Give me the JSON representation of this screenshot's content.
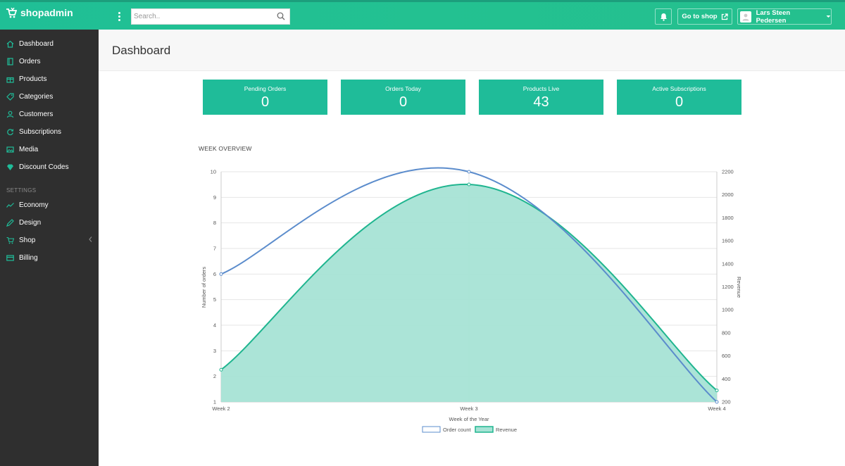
{
  "app": {
    "name": "shopadmin"
  },
  "topbar": {
    "search_placeholder": "Search..",
    "goto_label": "Go to shop",
    "user_name": "Lars Steen Pedersen"
  },
  "sidebar": {
    "items": [
      {
        "label": "Dashboard",
        "icon": "home-icon"
      },
      {
        "label": "Orders",
        "icon": "book-icon"
      },
      {
        "label": "Products",
        "icon": "gift-icon"
      },
      {
        "label": "Categories",
        "icon": "tag-icon"
      },
      {
        "label": "Customers",
        "icon": "user-icon"
      },
      {
        "label": "Subscriptions",
        "icon": "refresh-icon"
      },
      {
        "label": "Media",
        "icon": "image-icon"
      },
      {
        "label": "Discount Codes",
        "icon": "diamond-icon"
      }
    ],
    "settings_heading": "SETTINGS",
    "settings_items": [
      {
        "label": "Economy",
        "icon": "trend-icon"
      },
      {
        "label": "Design",
        "icon": "brush-icon"
      },
      {
        "label": "Shop",
        "icon": "cart-icon"
      },
      {
        "label": "Billing",
        "icon": "card-icon"
      }
    ]
  },
  "page": {
    "title": "Dashboard"
  },
  "stats": [
    {
      "label": "Pending Orders",
      "value": "0"
    },
    {
      "label": "Orders Today",
      "value": "0"
    },
    {
      "label": "Products Live",
      "value": "43"
    },
    {
      "label": "Active Subscriptions",
      "value": "0"
    }
  ],
  "week_overview": {
    "title": "WEEK OVERVIEW"
  },
  "colors": {
    "accent": "#1fbc99",
    "sidebar": "#2f2f2f",
    "order_line": "#5b8ccc",
    "revenue_line": "#1fb58f",
    "revenue_fill": "#a6e3d5"
  },
  "chart_data": {
    "type": "line",
    "categories": [
      "Week 2",
      "Week 3",
      "Week 4"
    ],
    "series": [
      {
        "name": "Order count",
        "axis": "left",
        "values": [
          6,
          10,
          1
        ]
      },
      {
        "name": "Revenue",
        "axis": "right",
        "values": [
          480,
          2090,
          300
        ],
        "fill": true
      }
    ],
    "xlabel": "Week of the Year",
    "ylabel": "Number of orders",
    "y2label": "Revenue",
    "ylim": [
      1,
      10
    ],
    "y2lim": [
      200,
      2200
    ],
    "yticks": [
      1,
      2,
      3,
      4,
      5,
      6,
      7,
      8,
      9,
      10
    ],
    "y2ticks": [
      200,
      400,
      600,
      800,
      1000,
      1200,
      1400,
      1600,
      1800,
      2000,
      2200
    ],
    "grid": true,
    "legend": "bottom"
  }
}
